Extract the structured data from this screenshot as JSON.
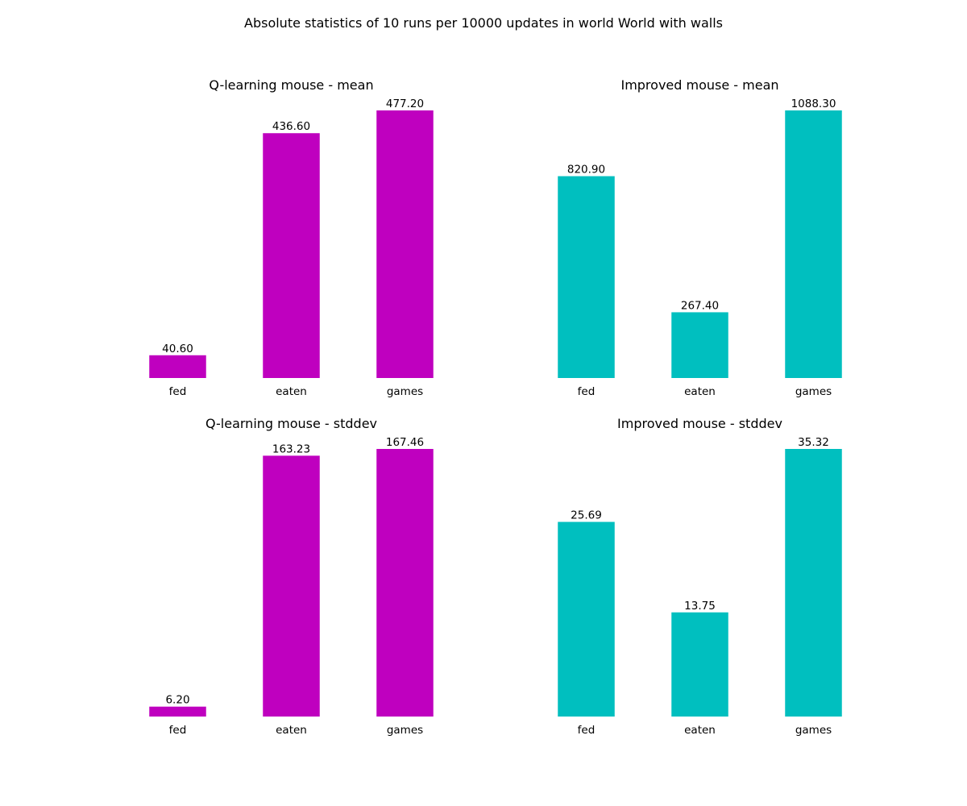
{
  "figure": {
    "title": "Absolute statistics of 10 runs per 10000 updates in world World with walls"
  },
  "colors": {
    "q_learning": "#bf00bf",
    "improved": "#00bfbf"
  },
  "chart_data": [
    {
      "type": "bar",
      "title": "Q-learning mouse - mean",
      "categories": [
        "fed",
        "eaten",
        "games"
      ],
      "values": [
        40.6,
        436.6,
        477.2
      ],
      "labels": [
        "40.60",
        "436.60",
        "477.20"
      ],
      "color": "#bf00bf",
      "ylim": [
        0,
        477.2
      ],
      "grid": false,
      "xlabel": "",
      "ylabel": ""
    },
    {
      "type": "bar",
      "title": "Improved mouse - mean",
      "categories": [
        "fed",
        "eaten",
        "games"
      ],
      "values": [
        820.9,
        267.4,
        1088.3
      ],
      "labels": [
        "820.90",
        "267.40",
        "1088.30"
      ],
      "color": "#00bfbf",
      "ylim": [
        0,
        1088.3
      ],
      "grid": false,
      "xlabel": "",
      "ylabel": ""
    },
    {
      "type": "bar",
      "title": "Q-learning mouse - stddev",
      "categories": [
        "fed",
        "eaten",
        "games"
      ],
      "values": [
        6.2,
        163.23,
        167.46
      ],
      "labels": [
        "6.20",
        "163.23",
        "167.46"
      ],
      "color": "#bf00bf",
      "ylim": [
        0,
        167.46
      ],
      "grid": false,
      "xlabel": "",
      "ylabel": ""
    },
    {
      "type": "bar",
      "title": "Improved mouse - stddev",
      "categories": [
        "fed",
        "eaten",
        "games"
      ],
      "values": [
        25.69,
        13.75,
        35.32
      ],
      "labels": [
        "25.69",
        "13.75",
        "35.32"
      ],
      "color": "#00bfbf",
      "ylim": [
        0,
        35.32
      ],
      "grid": false,
      "xlabel": "",
      "ylabel": ""
    }
  ]
}
